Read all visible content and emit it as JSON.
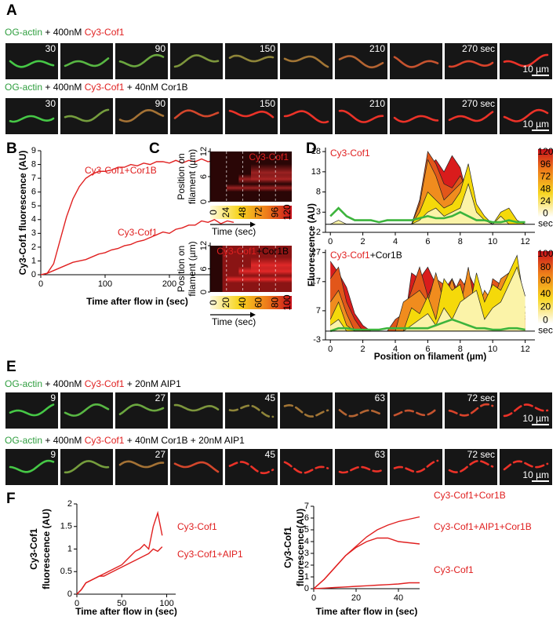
{
  "figure": {
    "panel_labels": [
      "A",
      "B",
      "C",
      "D",
      "E",
      "F"
    ],
    "micrographs": [
      {
        "rows": [
          {
            "caption": [
              {
                "text": "OG-actin",
                "color": "#2e9e3e"
              },
              {
                "text": " + 400nM ",
                "color": "#000000"
              },
              {
                "text": "Cy3-Cof1",
                "color": "#e02020"
              }
            ],
            "time_labels": [
              "30",
              "90",
              "150",
              "210",
              "270 sec"
            ],
            "scale_bar": "10 µm"
          },
          {
            "caption": [
              {
                "text": "OG-actin",
                "color": "#2e9e3e"
              },
              {
                "text": " + 400nM ",
                "color": "#000000"
              },
              {
                "text": "Cy3-Cof1",
                "color": "#e02020"
              },
              {
                "text": " + 40nM Cor1B",
                "color": "#000000"
              }
            ],
            "time_labels": [
              "30",
              "90",
              "150",
              "210",
              "270 sec"
            ],
            "scale_bar": "10 µm"
          }
        ]
      },
      {
        "rows": [
          {
            "caption": [
              {
                "text": "OG-actin",
                "color": "#2e9e3e"
              },
              {
                "text": " + 400nM ",
                "color": "#000000"
              },
              {
                "text": "Cy3-Cof1",
                "color": "#e02020"
              },
              {
                "text": " + 20nM AIP1",
                "color": "#000000"
              }
            ],
            "time_labels": [
              "9",
              "27",
              "45",
              "63",
              "72 sec"
            ],
            "scale_bar": "10 µm"
          },
          {
            "caption": [
              {
                "text": "OG-actin",
                "color": "#2e9e3e"
              },
              {
                "text": " + 400nM ",
                "color": "#000000"
              },
              {
                "text": "Cy3-Cof1",
                "color": "#e02020"
              },
              {
                "text": " + 40nM Cor1B + 20nM AIP1",
                "color": "#000000"
              }
            ],
            "time_labels": [
              "9",
              "27",
              "45",
              "63",
              "72 sec"
            ],
            "scale_bar": "10 µm"
          }
        ]
      }
    ]
  },
  "chart_data": [
    {
      "type": "line",
      "ylabel": "Cy3-Cof1 fluorescence (AU)",
      "xlabel": "Time after flow in (sec)",
      "xlim": [
        0,
        300
      ],
      "xticks": [
        0,
        100,
        200,
        300
      ],
      "ylim": [
        0,
        9
      ],
      "yticks": [
        0,
        1,
        2,
        3,
        4,
        5,
        6,
        7,
        8,
        9
      ],
      "x": [
        0,
        10,
        20,
        30,
        40,
        50,
        60,
        70,
        80,
        90,
        100,
        110,
        120,
        130,
        140,
        150,
        160,
        170,
        180,
        190,
        200,
        210,
        220,
        230,
        240,
        250,
        260,
        270,
        280,
        290,
        300
      ],
      "series": [
        {
          "name": "Cy3-Cof1+Cor1B",
          "color": "#e02020",
          "values": [
            0,
            0.1,
            0.8,
            2.5,
            4.2,
            5.5,
            6.4,
            7.0,
            7.3,
            7.5,
            7.5,
            7.6,
            7.8,
            7.8,
            8.0,
            7.9,
            8.1,
            8.0,
            8.2,
            8.2,
            8.1,
            8.3,
            8.1,
            8.3,
            8.2,
            8.4,
            8.2,
            8.3,
            8.2,
            8.3,
            8.2
          ]
        },
        {
          "name": "Cy3-Cof1",
          "color": "#e02020",
          "values": [
            0,
            0.1,
            0.3,
            0.5,
            0.7,
            0.9,
            1.0,
            1.1,
            1.3,
            1.5,
            1.6,
            1.8,
            1.9,
            2.1,
            2.2,
            2.4,
            2.5,
            2.7,
            2.9,
            3.1,
            3.0,
            3.3,
            3.4,
            3.6,
            3.6,
            3.9,
            3.8,
            4.0,
            3.7,
            3.9,
            3.8
          ]
        }
      ]
    },
    {
      "type": "heatmap",
      "title": [
        {
          "text": "Cy3-Cof1",
          "color": "#e02020"
        }
      ],
      "ylabel": [
        "Position on",
        "filament (µm)"
      ],
      "xlabel": "Time (sec)",
      "ylim": [
        0,
        12
      ],
      "yticks": [
        0,
        6,
        12
      ],
      "colorbar_ticks": [
        0,
        24,
        48,
        72,
        96,
        120
      ]
    },
    {
      "type": "heatmap",
      "title": [
        {
          "text": "Cy3-Cof1",
          "color": "#e02020"
        },
        {
          "text": "+Cor1B",
          "color": "#000000"
        }
      ],
      "ylabel": [
        "Position on",
        "filament (µm)"
      ],
      "xlabel": "Time (sec)",
      "ylim": [
        0,
        12
      ],
      "yticks": [
        0,
        6,
        12
      ],
      "colorbar_ticks": [
        0,
        20,
        40,
        60,
        80,
        100
      ]
    },
    {
      "type": "area",
      "title": [
        {
          "text": "Cy3-Cof1",
          "color": "#e02020"
        }
      ],
      "ylabel": "Fluorescence (AU)",
      "xlim": [
        -0.3,
        12.6
      ],
      "xticks": [
        0,
        2,
        4,
        6,
        8,
        10,
        12
      ],
      "ylim": [
        -2,
        19
      ],
      "yticks": [
        -2,
        3,
        8,
        13,
        18
      ],
      "colorbar_ticks": [
        0,
        24,
        48,
        72,
        96,
        120
      ],
      "colorbar_unit": "sec",
      "x": [
        0,
        0.5,
        1,
        1.5,
        2,
        2.5,
        3,
        3.5,
        4,
        4.5,
        5,
        5.5,
        6,
        6.5,
        7,
        7.5,
        8,
        8.5,
        9,
        9.5,
        10,
        10.5,
        11,
        11.5,
        12
      ],
      "series": [
        {
          "color": "#d91c1c",
          "values": [
            0,
            0,
            0,
            0,
            0,
            0,
            0,
            0,
            0,
            0,
            0,
            2,
            14,
            16,
            13,
            17,
            14,
            6,
            0,
            0,
            0,
            0,
            0,
            0,
            0
          ]
        },
        {
          "color": "#e2561a",
          "values": [
            0,
            0,
            0,
            0,
            0,
            0,
            0,
            0,
            0,
            0,
            0,
            6,
            18,
            15,
            10,
            9,
            12,
            8,
            2,
            0,
            0,
            0,
            0,
            0,
            0
          ]
        },
        {
          "color": "#f08c1e",
          "values": [
            0,
            0,
            0,
            0,
            0,
            0,
            0,
            0,
            0,
            0,
            0,
            5,
            16,
            12,
            6,
            8,
            10,
            12,
            4,
            1,
            0,
            0,
            0,
            0,
            0
          ]
        },
        {
          "color": "#f5d90a",
          "values": [
            0,
            0,
            0,
            0,
            0,
            0,
            0,
            0,
            0,
            0,
            0,
            3,
            8,
            6,
            4,
            5,
            8,
            15,
            5,
            2,
            0,
            3,
            4,
            1,
            0
          ]
        },
        {
          "color": "#fbf3a8",
          "values": [
            0,
            1,
            0,
            0,
            0,
            0,
            0,
            0,
            0,
            0,
            0,
            1,
            3,
            4,
            2,
            3,
            4,
            10,
            3,
            1,
            0,
            2,
            0,
            0,
            0
          ]
        },
        {
          "color": "#3cb43c",
          "style": "line",
          "values": [
            2,
            4,
            2,
            1,
            1,
            1,
            0.5,
            1,
            1,
            1,
            1,
            1.5,
            2,
            1.5,
            1.5,
            2,
            3,
            2,
            1,
            1,
            0.5,
            0.5,
            1,
            0.5,
            0.5
          ]
        }
      ]
    },
    {
      "type": "area",
      "title": [
        {
          "text": "Cy3-Cof1",
          "color": "#e02020"
        },
        {
          "text": "+Cor1B",
          "color": "#000000"
        }
      ],
      "xlabel": "Position on filament (µm)",
      "xlim": [
        -0.3,
        12.6
      ],
      "xticks": [
        0,
        2,
        4,
        6,
        8,
        10,
        12
      ],
      "ylim": [
        -3,
        28
      ],
      "yticks": [
        -3,
        7,
        17,
        27
      ],
      "colorbar_ticks": [
        0,
        20,
        40,
        60,
        80,
        100
      ],
      "colorbar_unit": "sec",
      "x": [
        0,
        0.5,
        1,
        1.5,
        2,
        2.5,
        3,
        3.5,
        4,
        4.5,
        5,
        5.5,
        6,
        6.5,
        7,
        7.5,
        8,
        8.5,
        9,
        9.5,
        10,
        10.5,
        11,
        11.5,
        12
      ],
      "series": [
        {
          "color": "#d91c1c",
          "values": [
            24,
            20,
            15,
            6,
            2,
            0,
            0,
            0,
            0,
            0,
            20,
            18,
            22,
            16,
            14,
            18,
            12,
            20,
            14,
            8,
            2,
            10,
            12,
            15,
            5
          ]
        },
        {
          "color": "#e2561a",
          "values": [
            18,
            22,
            10,
            4,
            0,
            0,
            0,
            0,
            4,
            6,
            14,
            22,
            12,
            18,
            16,
            12,
            18,
            14,
            10,
            4,
            18,
            16,
            8,
            20,
            4
          ]
        },
        {
          "color": "#f08c1e",
          "values": [
            10,
            14,
            6,
            0,
            0,
            0,
            0,
            0,
            0,
            10,
            12,
            14,
            10,
            20,
            10,
            18,
            8,
            22,
            6,
            14,
            10,
            18,
            20,
            24,
            6
          ]
        },
        {
          "color": "#f5d90a",
          "values": [
            4,
            10,
            2,
            0,
            0,
            0,
            0,
            0,
            0,
            0,
            8,
            6,
            12,
            4,
            18,
            14,
            16,
            6,
            20,
            10,
            16,
            14,
            20,
            26,
            8
          ]
        },
        {
          "color": "#fbf3a8",
          "values": [
            2,
            4,
            0,
            0,
            0,
            0,
            0,
            0,
            0,
            0,
            2,
            4,
            6,
            2,
            8,
            4,
            10,
            12,
            14,
            4,
            8,
            10,
            16,
            22,
            12
          ]
        },
        {
          "color": "#3cb43c",
          "style": "line",
          "values": [
            0,
            1,
            1,
            0.5,
            0.5,
            0.5,
            0.5,
            1,
            1,
            1,
            1,
            1,
            1,
            2,
            3,
            4,
            3,
            2,
            1,
            1,
            0.5,
            0.5,
            1,
            1,
            0.5
          ]
        }
      ]
    },
    {
      "type": "line",
      "ylabel": [
        "Cy3-Cof1",
        "fluorescence (AU)"
      ],
      "xlabel": "Time after flow in (sec)",
      "xlim": [
        0,
        110
      ],
      "xticks": [
        0,
        50,
        100
      ],
      "ylim": [
        0,
        2
      ],
      "yticks": [
        0,
        0.5,
        1,
        1.5,
        2
      ],
      "x": [
        0,
        5,
        10,
        15,
        20,
        25,
        30,
        35,
        40,
        45,
        50,
        55,
        60,
        65,
        70,
        75,
        80,
        85,
        90,
        95
      ],
      "series": [
        {
          "name": "Cy3-Cof1",
          "color": "#e02020",
          "values": [
            0,
            0.1,
            0.25,
            0.3,
            0.35,
            0.4,
            0.45,
            0.5,
            0.55,
            0.6,
            0.65,
            0.75,
            0.85,
            0.95,
            1.0,
            1.1,
            1.0,
            1.5,
            1.8,
            1.3
          ]
        },
        {
          "name": "Cy3-Cof1+AIP1",
          "color": "#e02020",
          "values": [
            0,
            0.1,
            0.25,
            0.3,
            0.35,
            0.4,
            0.4,
            0.45,
            0.5,
            0.55,
            0.6,
            0.65,
            0.7,
            0.75,
            0.8,
            0.85,
            0.9,
            1.0,
            0.95,
            1.05
          ]
        }
      ]
    },
    {
      "type": "line",
      "ylabel": [
        "Cy3-Cof1",
        "fluorescence(AU)"
      ],
      "xlabel": "Time after flow in (sec)",
      "xlim": [
        0,
        50
      ],
      "xticks": [
        0,
        20,
        40
      ],
      "ylim": [
        0,
        7
      ],
      "yticks": [
        0,
        1,
        2,
        3,
        4,
        5,
        6,
        7
      ],
      "x": [
        0,
        5,
        10,
        15,
        20,
        25,
        30,
        35,
        40,
        45,
        50
      ],
      "series": [
        {
          "name": "Cy3-Cof1+Cor1B",
          "color": "#e02020",
          "values": [
            0,
            0.8,
            1.8,
            2.8,
            3.6,
            4.4,
            5.0,
            5.4,
            5.7,
            5.9,
            6.1
          ]
        },
        {
          "name": "Cy3-Cof1+AIP1+Cor1B",
          "color": "#e02020",
          "values": [
            0,
            0.8,
            1.8,
            2.8,
            3.5,
            4.0,
            4.3,
            4.3,
            4.0,
            3.9,
            3.8
          ]
        },
        {
          "name": "Cy3-Cof1",
          "color": "#e02020",
          "values": [
            0,
            0.05,
            0.1,
            0.15,
            0.2,
            0.25,
            0.3,
            0.35,
            0.4,
            0.5,
            0.5
          ]
        }
      ]
    }
  ]
}
